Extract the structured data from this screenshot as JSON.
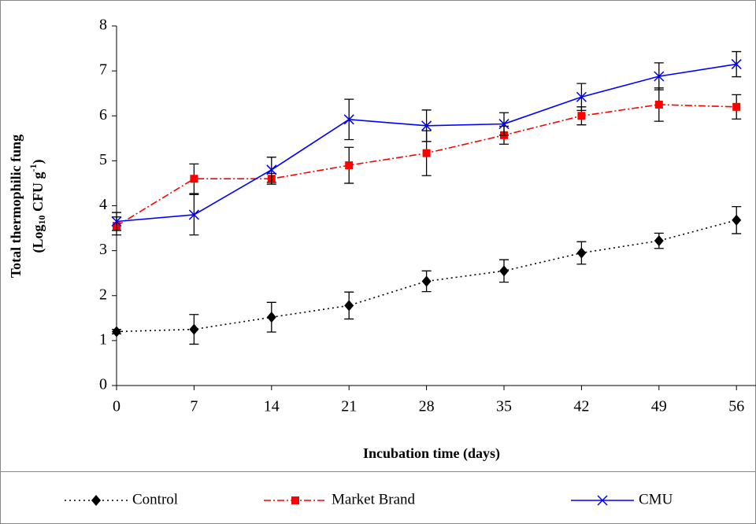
{
  "chart_data": {
    "type": "line",
    "x_label": "Incubation time (days)",
    "y_label_line1": "Total thermophilic fung",
    "y_label_line2": [
      "(Log",
      "10",
      " CFU g",
      "-1",
      ")"
    ],
    "categories": [
      "0",
      "7",
      "14",
      "21",
      "28",
      "35",
      "42",
      "49",
      "56"
    ],
    "ylim": [
      0,
      8
    ],
    "yticks": [
      0,
      1,
      2,
      3,
      4,
      5,
      6,
      7,
      8
    ],
    "legend": "bottom",
    "error_color": "#000000",
    "series": [
      {
        "name": "Control",
        "color": "#000000",
        "marker": "diamond",
        "dash": "2,4",
        "values": [
          1.2,
          1.25,
          1.52,
          1.78,
          2.32,
          2.55,
          2.95,
          3.22,
          3.68
        ],
        "errors": [
          0.05,
          0.33,
          0.33,
          0.3,
          0.23,
          0.25,
          0.25,
          0.17,
          0.3
        ]
      },
      {
        "name": "Market Brand",
        "color": "#ff0000",
        "marker": "square",
        "dash": "9,3,2,3",
        "values": [
          3.55,
          4.6,
          4.6,
          4.9,
          5.17,
          5.57,
          6.0,
          6.25,
          6.2
        ],
        "errors": [
          0.2,
          0.33,
          0.12,
          0.4,
          0.5,
          0.2,
          0.2,
          0.37,
          0.27
        ]
      },
      {
        "name": "CMU",
        "color": "#0000ff",
        "marker": "x",
        "dash": "",
        "values": [
          3.65,
          3.8,
          4.8,
          5.92,
          5.78,
          5.82,
          6.42,
          6.88,
          7.15
        ],
        "errors": [
          0.2,
          0.45,
          0.28,
          0.45,
          0.35,
          0.25,
          0.3,
          0.3,
          0.28
        ]
      }
    ]
  }
}
